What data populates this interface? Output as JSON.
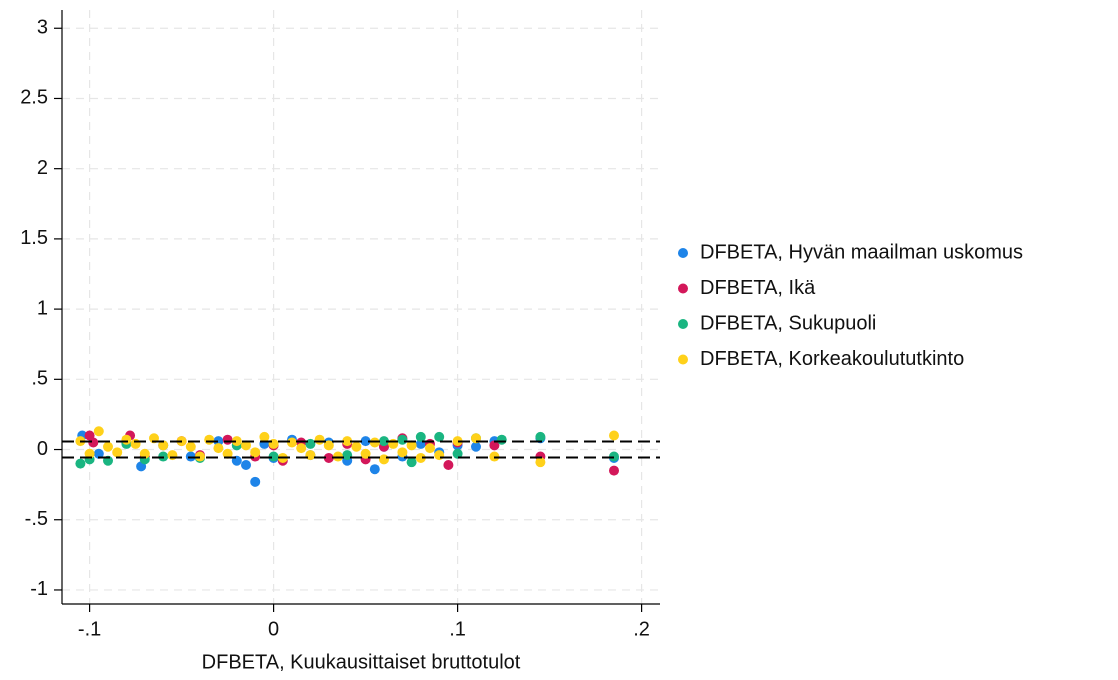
{
  "chart_data": {
    "type": "scatter",
    "x_label": "DFBETA, Kuukausittaiset bruttotulot",
    "xlim": [
      -0.115,
      0.21
    ],
    "xticks": [
      {
        "value": -0.1,
        "label": "-.1"
      },
      0,
      {
        "value": 0.1,
        "label": ".1"
      },
      {
        "value": 0.2,
        "label": ".2"
      }
    ],
    "ylim": [
      -1.1,
      3.13
    ],
    "yticks": [
      {
        "value": -1,
        "label": "-1"
      },
      {
        "value": -0.5,
        "label": "-.5"
      },
      0,
      {
        "value": 0.5,
        "label": ".5"
      },
      1,
      1.5,
      2,
      2.5,
      3
    ],
    "grid": true,
    "legend": "right",
    "reference_lines": [
      0.057,
      -0.057
    ],
    "series": [
      {
        "name": "DFBETA, Hyvän maailman uskomus",
        "color": "#1e84e8",
        "x": [
          -0.104,
          -0.095,
          -0.08,
          -0.072,
          -0.06,
          -0.045,
          -0.03,
          -0.02,
          -0.015,
          -0.01,
          -0.005,
          0,
          0.01,
          0.02,
          0.03,
          0.04,
          0.05,
          0.055,
          0.06,
          0.07,
          0.08,
          0.09,
          0.1,
          0.11,
          0.12,
          0.145,
          0.185
        ],
        "values": [
          0.1,
          -0.03,
          0.05,
          -0.12,
          0.03,
          -0.05,
          0.06,
          -0.08,
          -0.11,
          -0.23,
          0.04,
          -0.06,
          0.07,
          -0.04,
          0.05,
          -0.08,
          0.06,
          -0.14,
          0.02,
          -0.05,
          0.04,
          -0.02,
          0.03,
          0.02,
          0.06,
          0.08,
          -0.06
        ]
      },
      {
        "name": "DFBETA, Ikä",
        "color": "#d3175a",
        "x": [
          -0.1,
          -0.098,
          -0.078,
          -0.07,
          -0.05,
          -0.04,
          -0.025,
          -0.01,
          0,
          0.005,
          0.015,
          0.03,
          0.04,
          0.05,
          0.06,
          0.07,
          0.085,
          0.095,
          0.1,
          0.12,
          0.145,
          0.185
        ],
        "values": [
          0.1,
          0.05,
          0.1,
          -0.05,
          0.06,
          -0.04,
          0.07,
          -0.05,
          0.03,
          -0.08,
          0.05,
          -0.06,
          0.04,
          -0.07,
          0.02,
          0.08,
          0.04,
          -0.11,
          0.05,
          0.03,
          -0.05,
          -0.15
        ]
      },
      {
        "name": "DFBETA, Sukupuoli",
        "color": "#1ab581",
        "x": [
          -0.105,
          -0.1,
          -0.09,
          -0.08,
          -0.07,
          -0.06,
          -0.04,
          -0.02,
          0,
          0.02,
          0.04,
          0.06,
          0.07,
          0.075,
          0.08,
          0.09,
          0.1,
          0.11,
          0.124,
          0.145,
          0.185
        ],
        "values": [
          -0.1,
          -0.07,
          -0.08,
          0.04,
          -0.07,
          -0.05,
          -0.06,
          0.03,
          -0.05,
          0.04,
          -0.04,
          0.06,
          0.07,
          -0.09,
          0.09,
          0.09,
          -0.03,
          0.08,
          0.07,
          0.09,
          -0.05
        ]
      },
      {
        "name": "DFBETA, Korkeakoulututkinto",
        "color": "#ffd11a",
        "x": [
          -0.105,
          -0.1,
          -0.095,
          -0.09,
          -0.085,
          -0.08,
          -0.075,
          -0.07,
          -0.065,
          -0.06,
          -0.055,
          -0.05,
          -0.045,
          -0.04,
          -0.035,
          -0.03,
          -0.025,
          -0.02,
          -0.015,
          -0.01,
          -0.005,
          0,
          0.005,
          0.01,
          0.015,
          0.02,
          0.025,
          0.03,
          0.035,
          0.04,
          0.045,
          0.05,
          0.055,
          0.06,
          0.065,
          0.07,
          0.075,
          0.08,
          0.085,
          0.09,
          0.1,
          0.11,
          0.12,
          0.145,
          0.185
        ],
        "values": [
          0.06,
          -0.03,
          0.13,
          0.02,
          -0.02,
          0.07,
          0.04,
          -0.03,
          0.08,
          0.03,
          -0.04,
          0.06,
          0.02,
          -0.05,
          0.07,
          0.01,
          -0.03,
          0.06,
          0.03,
          -0.02,
          0.09,
          0.04,
          -0.06,
          0.05,
          0.01,
          -0.04,
          0.07,
          0.03,
          -0.05,
          0.06,
          0.02,
          -0.03,
          0.05,
          -0.07,
          0.04,
          -0.02,
          0.03,
          -0.06,
          0.01,
          -0.04,
          0.06,
          0.08,
          -0.05,
          -0.09,
          0.1
        ]
      }
    ]
  }
}
